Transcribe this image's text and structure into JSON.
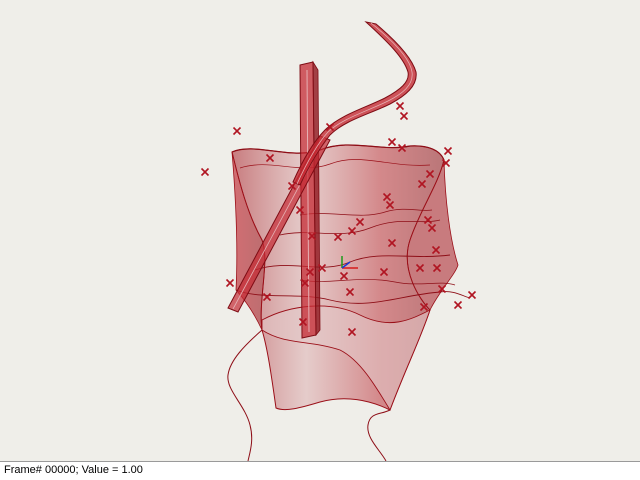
{
  "statusbar": {
    "text": "Frame# 00000;  Value = 1.00"
  },
  "colors": {
    "surface": "#b8232c",
    "surface_fill": "#c42a33",
    "edge": "#9a0f18",
    "point_marker": "#b01522",
    "gumball_x": "#d61a1a",
    "gumball_y": "#1a9a1a",
    "gumball_z": "#1a3ad6",
    "background": "#efeee9"
  },
  "scene": {
    "object": "twisted-surface-with-control-points",
    "markers": "control-point-x-icon"
  }
}
